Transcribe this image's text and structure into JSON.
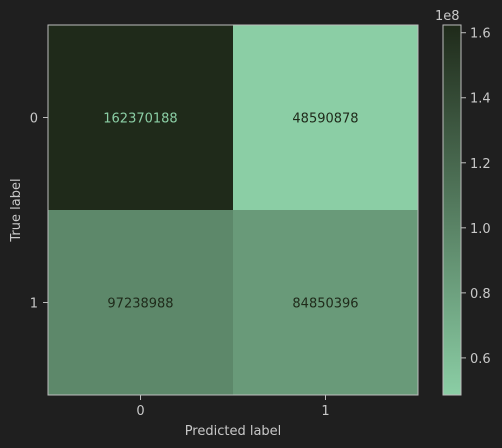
{
  "colors": {
    "background": "#1f1f1f",
    "text": "#c8c8c8",
    "axis": "#bdbdbd",
    "cmap_low": "#8bcea5",
    "cmap_high": "#1f2a1a",
    "label_on_dark": "#8bcea5",
    "label_on_light": "#1f2a1a"
  },
  "chart_data": {
    "type": "heatmap",
    "title": "",
    "xlabel": "Predicted label",
    "ylabel": "True label",
    "x_categories": [
      "0",
      "1"
    ],
    "y_categories": [
      "0",
      "1"
    ],
    "values": [
      [
        162370188,
        48590878
      ],
      [
        97238988,
        84850396
      ]
    ],
    "cell_labels": [
      [
        "162370188",
        "48590878"
      ],
      [
        "97238988",
        "84850396"
      ]
    ],
    "colorbar": {
      "min": 48590878,
      "max": 162370188,
      "ticks": [
        0.6,
        0.8,
        1.0,
        1.2,
        1.4,
        1.6
      ],
      "tick_labels": [
        "0.6",
        "0.8",
        "1.0",
        "1.2",
        "1.4",
        "1.6"
      ],
      "offset_label": "1e8",
      "scale": 100000000
    },
    "grid": false,
    "legend": "colorbar-right"
  }
}
